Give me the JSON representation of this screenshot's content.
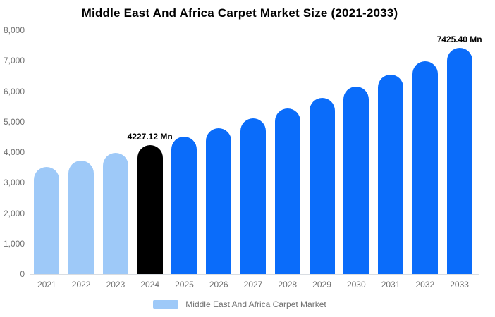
{
  "title": "Middle East And Africa Carpet Market Size (2021-2033)",
  "legend": {
    "label": "Middle East And Africa Carpet Market",
    "swatch_color": "#9ec9f8"
  },
  "colors": {
    "historical": "#9ec9f8",
    "base_year": "#000000",
    "forecast": "#0a6cfa",
    "axis": "#d9dde2",
    "label_text": "#707070",
    "annotation_text": "#000000",
    "title_text": "#000000"
  },
  "chart_data": {
    "type": "bar",
    "title": "Middle East And Africa Carpet Market Size (2021-2033)",
    "xlabel": "",
    "ylabel": "",
    "unit": "Mn",
    "categories": [
      "2021",
      "2022",
      "2023",
      "2024",
      "2025",
      "2026",
      "2027",
      "2028",
      "2029",
      "2030",
      "2031",
      "2032",
      "2033"
    ],
    "values": [
      3503,
      3730,
      3971,
      4227.12,
      4500,
      4791,
      5101,
      5430,
      5781,
      6154,
      6552,
      6975,
      7425.4
    ],
    "point_colors": [
      "#9ec9f8",
      "#9ec9f8",
      "#9ec9f8",
      "#000000",
      "#0a6cfa",
      "#0a6cfa",
      "#0a6cfa",
      "#0a6cfa",
      "#0a6cfa",
      "#0a6cfa",
      "#0a6cfa",
      "#0a6cfa",
      "#0a6cfa"
    ],
    "ylim": [
      0,
      8000
    ],
    "y_ticks": [
      0,
      1000,
      2000,
      3000,
      4000,
      5000,
      6000,
      7000,
      8000
    ],
    "y_tick_labels": [
      "0",
      "1,000",
      "2,000",
      "3,000",
      "4,000",
      "5,000",
      "6,000",
      "7,000",
      "8,000"
    ],
    "grid": false,
    "legend_position": "bottom",
    "data_labels": [
      {
        "category": "2024",
        "text": "4227.12 Mn"
      },
      {
        "category": "2033",
        "text": "7425.40 Mn"
      }
    ]
  }
}
